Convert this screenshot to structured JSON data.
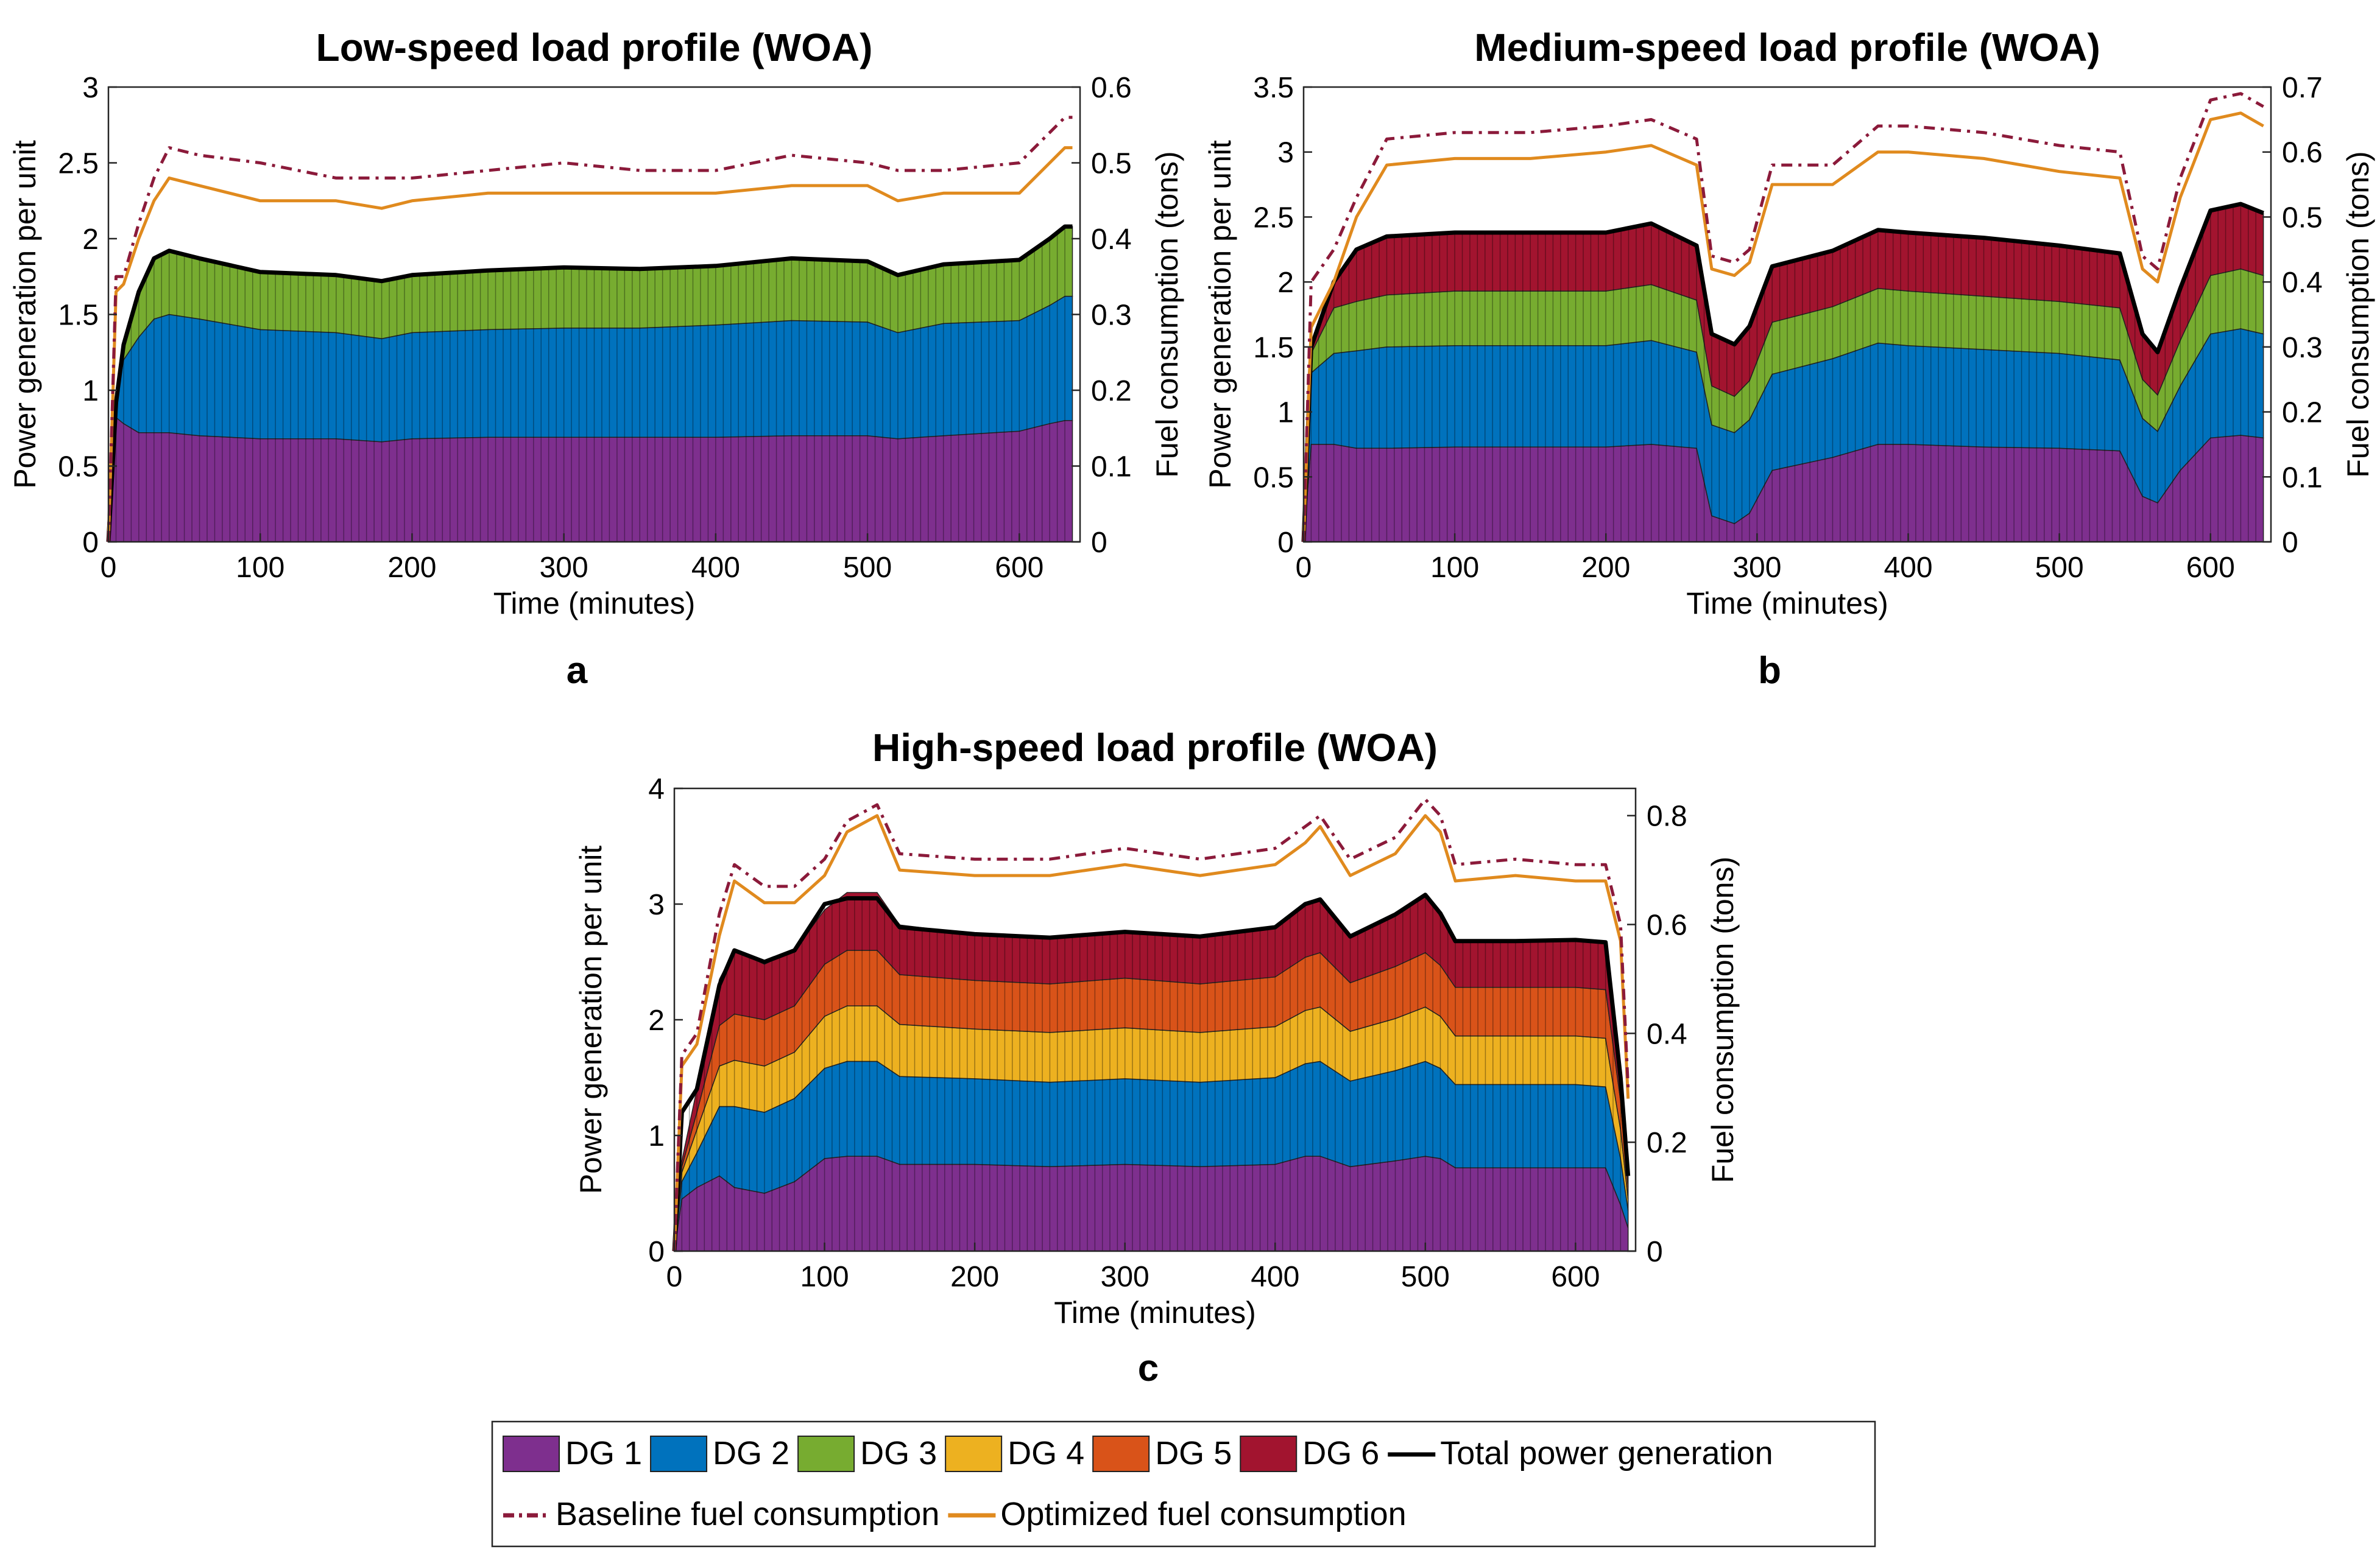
{
  "figure": {
    "legend": {
      "items": [
        {
          "label": "DG 1",
          "kind": "patch",
          "color": "#7e2f8e"
        },
        {
          "label": "DG 2",
          "kind": "patch",
          "color": "#0072bd"
        },
        {
          "label": "DG 3",
          "kind": "patch",
          "color": "#77ac30"
        },
        {
          "label": "DG 4",
          "kind": "patch",
          "color": "#edb120"
        },
        {
          "label": "DG 5",
          "kind": "patch",
          "color": "#d95319"
        },
        {
          "label": "DG 6",
          "kind": "patch",
          "color": "#a2142f"
        },
        {
          "label": "Total power generation",
          "kind": "line",
          "color": "#000000"
        },
        {
          "label": "Baseline fuel consumption",
          "kind": "dashline",
          "color": "#8b1a3a"
        },
        {
          "label": "Optimized fuel consumption",
          "kind": "line",
          "color": "#e08a1e"
        }
      ]
    }
  },
  "chart_data": [
    {
      "panel": "a",
      "type": "area",
      "title": "Low-speed load profile (WOA)",
      "xlabel": "Time (minutes)",
      "ylabel": "Power generation per unit",
      "y2label": "Fuel consumption (tons)",
      "xlim": [
        0,
        640
      ],
      "ylim": [
        0,
        3
      ],
      "y2lim": [
        0,
        0.6
      ],
      "xticks": [
        0,
        100,
        200,
        300,
        400,
        500,
        600
      ],
      "yticks": [
        0,
        0.5,
        1,
        1.5,
        2,
        2.5,
        3
      ],
      "y2ticks": [
        0,
        0.1,
        0.2,
        0.3,
        0.4,
        0.5,
        0.6
      ],
      "x": [
        0,
        5,
        10,
        20,
        30,
        40,
        60,
        100,
        150,
        180,
        200,
        250,
        300,
        350,
        400,
        450,
        500,
        520,
        550,
        600,
        620,
        630,
        635
      ],
      "series": [
        {
          "name": "DG 1",
          "values": [
            0,
            0.82,
            0.78,
            0.72,
            0.72,
            0.72,
            0.7,
            0.68,
            0.68,
            0.66,
            0.68,
            0.69,
            0.69,
            0.69,
            0.69,
            0.7,
            0.7,
            0.68,
            0.7,
            0.73,
            0.78,
            0.8,
            0.8
          ]
        },
        {
          "name": "DG 2",
          "values": [
            0,
            0.1,
            0.42,
            0.63,
            0.75,
            0.78,
            0.77,
            0.72,
            0.7,
            0.68,
            0.7,
            0.71,
            0.72,
            0.72,
            0.74,
            0.76,
            0.75,
            0.7,
            0.74,
            0.73,
            0.78,
            0.82,
            0.82
          ]
        },
        {
          "name": "DG 3",
          "values": [
            0,
            0,
            0.1,
            0.3,
            0.4,
            0.42,
            0.4,
            0.38,
            0.38,
            0.38,
            0.38,
            0.39,
            0.4,
            0.39,
            0.39,
            0.41,
            0.4,
            0.38,
            0.39,
            0.4,
            0.44,
            0.46,
            0.46
          ]
        }
      ],
      "total_power": [
        0,
        0.92,
        1.3,
        1.65,
        1.87,
        1.92,
        1.87,
        1.78,
        1.76,
        1.72,
        1.76,
        1.79,
        1.81,
        1.8,
        1.82,
        1.87,
        1.85,
        1.76,
        1.83,
        1.86,
        2.0,
        2.08,
        2.08
      ],
      "baseline_fuel": [
        0,
        0.35,
        0.35,
        0.42,
        0.48,
        0.52,
        0.51,
        0.5,
        0.48,
        0.48,
        0.48,
        0.49,
        0.5,
        0.49,
        0.49,
        0.51,
        0.5,
        0.49,
        0.49,
        0.5,
        0.54,
        0.56,
        0.56
      ],
      "optimized_fuel": [
        0,
        0.33,
        0.34,
        0.4,
        0.45,
        0.48,
        0.47,
        0.45,
        0.45,
        0.44,
        0.45,
        0.46,
        0.46,
        0.46,
        0.46,
        0.47,
        0.47,
        0.45,
        0.46,
        0.46,
        0.5,
        0.52,
        0.52
      ]
    },
    {
      "panel": "b",
      "type": "area",
      "title": "Medium-speed load profile (WOA)",
      "xlabel": "Time (minutes)",
      "ylabel": "Power generation per unit",
      "y2label": "Fuel consumption (tons)",
      "xlim": [
        0,
        640
      ],
      "ylim": [
        0,
        3.5
      ],
      "y2lim": [
        0,
        0.7
      ],
      "xticks": [
        0,
        100,
        200,
        300,
        400,
        500,
        600
      ],
      "yticks": [
        0,
        0.5,
        1,
        1.5,
        2,
        2.5,
        3,
        3.5
      ],
      "y2ticks": [
        0,
        0.1,
        0.2,
        0.3,
        0.4,
        0.5,
        0.6,
        0.7
      ],
      "x": [
        0,
        5,
        20,
        35,
        55,
        100,
        150,
        200,
        230,
        260,
        270,
        285,
        295,
        310,
        350,
        380,
        400,
        450,
        500,
        540,
        555,
        565,
        580,
        600,
        620,
        635
      ],
      "series": [
        {
          "name": "DG 1",
          "values": [
            0,
            0.75,
            0.75,
            0.72,
            0.72,
            0.73,
            0.73,
            0.73,
            0.75,
            0.72,
            0.2,
            0.14,
            0.22,
            0.55,
            0.65,
            0.75,
            0.75,
            0.73,
            0.72,
            0.7,
            0.35,
            0.3,
            0.55,
            0.8,
            0.82,
            0.8
          ]
        },
        {
          "name": "DG 2",
          "values": [
            0,
            0.55,
            0.7,
            0.75,
            0.78,
            0.78,
            0.78,
            0.78,
            0.8,
            0.74,
            0.7,
            0.7,
            0.72,
            0.74,
            0.76,
            0.78,
            0.76,
            0.75,
            0.73,
            0.7,
            0.6,
            0.55,
            0.65,
            0.8,
            0.82,
            0.8
          ]
        },
        {
          "name": "DG 3",
          "values": [
            0,
            0.15,
            0.35,
            0.38,
            0.4,
            0.42,
            0.42,
            0.42,
            0.43,
            0.4,
            0.3,
            0.28,
            0.3,
            0.4,
            0.4,
            0.42,
            0.42,
            0.41,
            0.4,
            0.4,
            0.3,
            0.28,
            0.35,
            0.45,
            0.46,
            0.45
          ]
        },
        {
          "name": "DG 6",
          "values": [
            0,
            0.05,
            0.2,
            0.4,
            0.45,
            0.45,
            0.45,
            0.45,
            0.47,
            0.42,
            0.4,
            0.4,
            0.42,
            0.43,
            0.43,
            0.45,
            0.45,
            0.45,
            0.43,
            0.42,
            0.35,
            0.33,
            0.4,
            0.5,
            0.5,
            0.48
          ]
        }
      ],
      "total_power": [
        0,
        1.5,
        2.0,
        2.25,
        2.35,
        2.38,
        2.38,
        2.38,
        2.45,
        2.28,
        1.6,
        1.52,
        1.66,
        2.12,
        2.24,
        2.4,
        2.38,
        2.34,
        2.28,
        2.22,
        1.6,
        1.46,
        1.95,
        2.55,
        2.6,
        2.53
      ],
      "baseline_fuel": [
        0,
        0.4,
        0.45,
        0.53,
        0.62,
        0.63,
        0.63,
        0.64,
        0.65,
        0.62,
        0.44,
        0.43,
        0.45,
        0.58,
        0.58,
        0.64,
        0.64,
        0.63,
        0.61,
        0.6,
        0.44,
        0.42,
        0.56,
        0.68,
        0.69,
        0.67
      ],
      "optimized_fuel": [
        0,
        0.33,
        0.4,
        0.5,
        0.58,
        0.59,
        0.59,
        0.6,
        0.61,
        0.58,
        0.42,
        0.41,
        0.43,
        0.55,
        0.55,
        0.6,
        0.6,
        0.59,
        0.57,
        0.56,
        0.42,
        0.4,
        0.53,
        0.65,
        0.66,
        0.64
      ]
    },
    {
      "panel": "c",
      "type": "area",
      "title": "High-speed load profile (WOA)",
      "xlabel": "Time (minutes)",
      "ylabel": "Power generation per unit",
      "y2label": "Fuel consumption (tons)",
      "xlim": [
        0,
        640
      ],
      "ylim": [
        0,
        4
      ],
      "y2lim": [
        0,
        0.85
      ],
      "xticks": [
        0,
        100,
        200,
        300,
        400,
        500,
        600
      ],
      "yticks": [
        0,
        1,
        2,
        3,
        4
      ],
      "y2ticks": [
        0,
        0.2,
        0.4,
        0.6,
        0.8
      ],
      "x": [
        0,
        5,
        15,
        30,
        40,
        60,
        80,
        100,
        115,
        135,
        150,
        200,
        250,
        300,
        350,
        400,
        420,
        430,
        450,
        480,
        500,
        510,
        520,
        560,
        600,
        620,
        630,
        635
      ],
      "series": [
        {
          "name": "DG 1",
          "values": [
            0,
            0.45,
            0.55,
            0.65,
            0.55,
            0.5,
            0.6,
            0.8,
            0.82,
            0.82,
            0.75,
            0.75,
            0.73,
            0.75,
            0.73,
            0.75,
            0.82,
            0.82,
            0.73,
            0.78,
            0.82,
            0.8,
            0.72,
            0.72,
            0.72,
            0.72,
            0.4,
            0.2
          ]
        },
        {
          "name": "DG 2",
          "values": [
            0,
            0.15,
            0.3,
            0.6,
            0.7,
            0.7,
            0.72,
            0.78,
            0.82,
            0.82,
            0.76,
            0.74,
            0.73,
            0.74,
            0.73,
            0.75,
            0.8,
            0.82,
            0.74,
            0.78,
            0.82,
            0.78,
            0.72,
            0.72,
            0.72,
            0.7,
            0.4,
            0.15
          ]
        },
        {
          "name": "DG 4",
          "values": [
            0,
            0.08,
            0.2,
            0.35,
            0.4,
            0.4,
            0.4,
            0.45,
            0.48,
            0.48,
            0.45,
            0.43,
            0.43,
            0.44,
            0.43,
            0.44,
            0.46,
            0.47,
            0.43,
            0.45,
            0.47,
            0.45,
            0.42,
            0.42,
            0.42,
            0.42,
            0.25,
            0.1
          ]
        },
        {
          "name": "DG 5",
          "values": [
            0,
            0.05,
            0.15,
            0.35,
            0.4,
            0.4,
            0.4,
            0.45,
            0.48,
            0.48,
            0.43,
            0.42,
            0.42,
            0.43,
            0.42,
            0.43,
            0.46,
            0.47,
            0.42,
            0.45,
            0.47,
            0.44,
            0.42,
            0.42,
            0.42,
            0.42,
            0.25,
            0.1
          ]
        },
        {
          "name": "DG 6",
          "values": [
            0,
            0.05,
            0.2,
            0.4,
            0.55,
            0.48,
            0.48,
            0.47,
            0.5,
            0.5,
            0.43,
            0.4,
            0.4,
            0.4,
            0.41,
            0.43,
            0.46,
            0.46,
            0.4,
            0.45,
            0.5,
            0.45,
            0.4,
            0.4,
            0.41,
            0.41,
            0.2,
            0.1
          ]
        }
      ],
      "total_power": [
        0,
        1.2,
        1.4,
        2.3,
        2.6,
        2.5,
        2.6,
        3.0,
        3.05,
        3.05,
        2.8,
        2.74,
        2.71,
        2.76,
        2.72,
        2.8,
        3.0,
        3.04,
        2.72,
        2.91,
        3.08,
        2.92,
        2.68,
        2.68,
        2.69,
        2.67,
        1.5,
        0.65
      ],
      "baseline_fuel": [
        0,
        0.36,
        0.4,
        0.62,
        0.71,
        0.67,
        0.67,
        0.72,
        0.79,
        0.82,
        0.73,
        0.72,
        0.72,
        0.74,
        0.72,
        0.74,
        0.78,
        0.8,
        0.72,
        0.76,
        0.83,
        0.8,
        0.71,
        0.72,
        0.71,
        0.71,
        0.6,
        0.3
      ],
      "optimized_fuel": [
        0,
        0.34,
        0.38,
        0.58,
        0.68,
        0.64,
        0.64,
        0.69,
        0.77,
        0.8,
        0.7,
        0.69,
        0.69,
        0.71,
        0.69,
        0.71,
        0.75,
        0.78,
        0.69,
        0.73,
        0.8,
        0.77,
        0.68,
        0.69,
        0.68,
        0.68,
        0.57,
        0.28
      ]
    }
  ],
  "panel_letters": {
    "a": "a",
    "b": "b",
    "c": "c"
  }
}
